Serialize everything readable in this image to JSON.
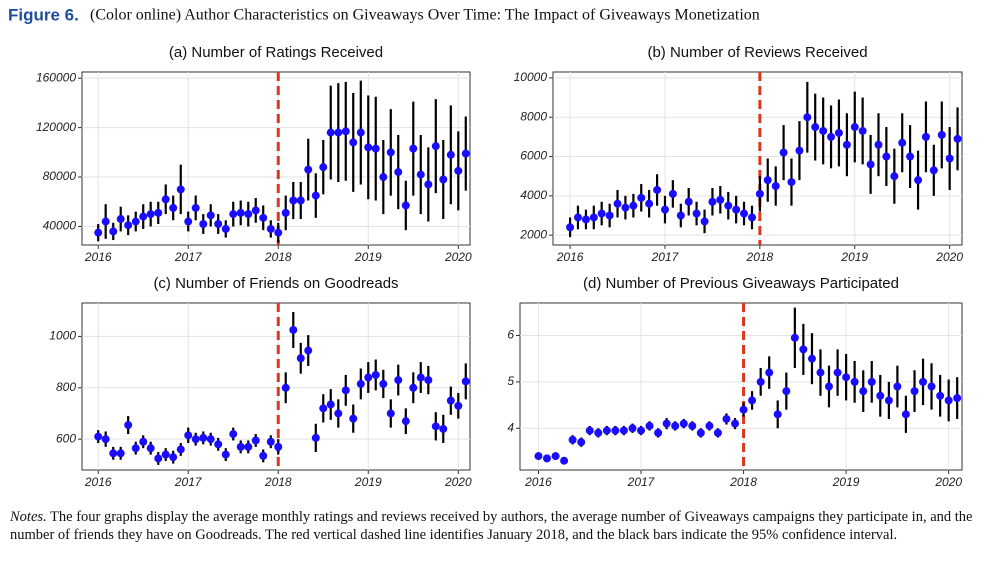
{
  "figure_label": "Figure 6.",
  "figure_title": "(Color online) Author Characteristics on Giveaways Over Time: The Impact of Giveaways Monetization",
  "notes_label": "Notes.",
  "notes_text": "The four graphs display the average monthly ratings and reviews received by authors, the average number of Giveaways campaigns they participate in, and the number of friends they have on Goodreads. The red vertical dashed line identifies January 2018, and the black bars indicate the 95% confidence interval.",
  "chart_data": [
    {
      "type": "errorpoint",
      "title": "(a) Number of Ratings Received",
      "color": "#1a0dff",
      "error_color": "#000000",
      "vline": {
        "x": 2018,
        "color": "#d9381e"
      },
      "grid": true,
      "x": [
        2016,
        2016.083,
        2016.167,
        2016.25,
        2016.333,
        2016.417,
        2016.5,
        2016.583,
        2016.667,
        2016.75,
        2016.833,
        2016.917,
        2017,
        2017.083,
        2017.167,
        2017.25,
        2017.333,
        2017.417,
        2017.5,
        2017.583,
        2017.667,
        2017.75,
        2017.833,
        2017.917,
        2018,
        2018.083,
        2018.167,
        2018.25,
        2018.333,
        2018.417,
        2018.5,
        2018.583,
        2018.667,
        2018.75,
        2018.833,
        2018.917,
        2019,
        2019.083,
        2019.167,
        2019.25,
        2019.333,
        2019.417,
        2019.5,
        2019.583,
        2019.667,
        2019.75,
        2019.833,
        2019.917,
        2020,
        2020.083
      ],
      "values": [
        35000,
        44000,
        36000,
        46000,
        41000,
        44000,
        48000,
        50000,
        51000,
        62000,
        55000,
        70000,
        44000,
        55000,
        42000,
        49000,
        42000,
        38000,
        50000,
        51000,
        50000,
        53000,
        47000,
        38000,
        35000,
        51000,
        61000,
        61000,
        86000,
        65000,
        88000,
        116000,
        116000,
        117000,
        108000,
        116000,
        104000,
        103000,
        80000,
        100000,
        84000,
        57000,
        103000,
        82000,
        74000,
        105000,
        78000,
        98000,
        85000,
        99000
      ],
      "errors": [
        7000,
        14000,
        7000,
        10000,
        8000,
        8000,
        10000,
        10000,
        9000,
        12000,
        10000,
        20000,
        8000,
        10000,
        8000,
        9000,
        8000,
        7000,
        10000,
        10000,
        10000,
        10000,
        10000,
        7000,
        8000,
        14000,
        15000,
        15000,
        25000,
        18000,
        22000,
        38000,
        40000,
        40000,
        40000,
        42000,
        42000,
        42000,
        30000,
        35000,
        30000,
        20000,
        38000,
        32000,
        30000,
        38000,
        32000,
        40000,
        32000,
        30000
      ],
      "xlim": [
        2015.82,
        2020.13
      ],
      "xticks": [
        2016,
        2017,
        2018,
        2019,
        2020
      ],
      "ylim": [
        25000,
        165000
      ],
      "yticks": [
        40000,
        80000,
        120000,
        160000
      ]
    },
    {
      "type": "errorpoint",
      "title": "(b) Number of Reviews Received",
      "color": "#1a0dff",
      "error_color": "#000000",
      "vline": {
        "x": 2018,
        "color": "#d9381e"
      },
      "grid": true,
      "x": [
        2016,
        2016.083,
        2016.167,
        2016.25,
        2016.333,
        2016.417,
        2016.5,
        2016.583,
        2016.667,
        2016.75,
        2016.833,
        2016.917,
        2017,
        2017.083,
        2017.167,
        2017.25,
        2017.333,
        2017.417,
        2017.5,
        2017.583,
        2017.667,
        2017.75,
        2017.833,
        2017.917,
        2018,
        2018.083,
        2018.167,
        2018.25,
        2018.333,
        2018.417,
        2018.5,
        2018.583,
        2018.667,
        2018.75,
        2018.833,
        2018.917,
        2019,
        2019.083,
        2019.167,
        2019.25,
        2019.333,
        2019.417,
        2019.5,
        2019.583,
        2019.667,
        2019.75,
        2019.833,
        2019.917,
        2020,
        2020.083
      ],
      "values": [
        2400,
        2900,
        2800,
        2900,
        3100,
        3000,
        3600,
        3400,
        3500,
        3900,
        3600,
        4300,
        3300,
        4100,
        3000,
        3700,
        3100,
        2700,
        3700,
        3800,
        3500,
        3300,
        3100,
        2900,
        4100,
        4800,
        4500,
        6200,
        4700,
        6300,
        8000,
        7500,
        7300,
        7000,
        7200,
        6600,
        7500,
        7300,
        5600,
        6600,
        6000,
        5000,
        6700,
        6000,
        4800,
        7000,
        5300,
        7100,
        5900,
        6900
      ],
      "errors": [
        500,
        600,
        500,
        600,
        600,
        600,
        700,
        600,
        600,
        700,
        700,
        800,
        700,
        700,
        600,
        700,
        600,
        600,
        700,
        700,
        700,
        700,
        600,
        600,
        900,
        1100,
        1000,
        1400,
        1200,
        1500,
        1800,
        1700,
        1700,
        1600,
        1700,
        1600,
        1800,
        1700,
        1500,
        1600,
        1500,
        1400,
        1500,
        1600,
        1500,
        1800,
        1300,
        1700,
        1600,
        1600
      ],
      "xlim": [
        2015.82,
        2020.13
      ],
      "xticks": [
        2016,
        2017,
        2018,
        2019,
        2020
      ],
      "ylim": [
        1500,
        10300
      ],
      "yticks": [
        2000,
        4000,
        6000,
        8000,
        10000
      ]
    },
    {
      "type": "errorpoint",
      "title": "(c) Number of Friends on Goodreads",
      "color": "#1a0dff",
      "error_color": "#000000",
      "vline": {
        "x": 2018,
        "color": "#d9381e"
      },
      "grid": true,
      "x": [
        2016,
        2016.083,
        2016.167,
        2016.25,
        2016.333,
        2016.417,
        2016.5,
        2016.583,
        2016.667,
        2016.75,
        2016.833,
        2016.917,
        2017,
        2017.083,
        2017.167,
        2017.25,
        2017.333,
        2017.417,
        2017.5,
        2017.583,
        2017.667,
        2017.75,
        2017.833,
        2017.917,
        2018,
        2018.083,
        2018.167,
        2018.25,
        2018.333,
        2018.417,
        2018.5,
        2018.583,
        2018.667,
        2018.75,
        2018.833,
        2018.917,
        2019,
        2019.083,
        2019.167,
        2019.25,
        2019.333,
        2019.417,
        2019.5,
        2019.583,
        2019.667,
        2019.75,
        2019.833,
        2019.917,
        2020,
        2020.083
      ],
      "values": [
        610,
        600,
        545,
        545,
        655,
        565,
        590,
        565,
        525,
        540,
        530,
        560,
        615,
        600,
        605,
        600,
        580,
        540,
        620,
        570,
        570,
        595,
        535,
        590,
        570,
        800,
        1025,
        915,
        945,
        605,
        720,
        735,
        700,
        790,
        680,
        815,
        840,
        850,
        815,
        700,
        830,
        670,
        800,
        840,
        830,
        650,
        640,
        750,
        730,
        825
      ],
      "errors": [
        25,
        30,
        25,
        25,
        35,
        25,
        25,
        25,
        25,
        25,
        25,
        25,
        30,
        25,
        25,
        25,
        25,
        25,
        25,
        25,
        25,
        25,
        25,
        25,
        30,
        60,
        70,
        60,
        60,
        55,
        55,
        60,
        55,
        60,
        55,
        60,
        60,
        60,
        55,
        55,
        60,
        50,
        60,
        60,
        55,
        55,
        55,
        55,
        50,
        70
      ],
      "xlim": [
        2015.82,
        2020.13
      ],
      "xticks": [
        2016,
        2017,
        2018,
        2019,
        2020
      ],
      "ylim": [
        480,
        1130
      ],
      "yticks": [
        600,
        800,
        1000
      ]
    },
    {
      "type": "errorpoint",
      "title": "(d) Number of Previous Giveaways Participated",
      "color": "#1a0dff",
      "error_color": "#000000",
      "vline": {
        "x": 2018,
        "color": "#d9381e"
      },
      "grid": true,
      "x": [
        2016,
        2016.083,
        2016.167,
        2016.25,
        2016.333,
        2016.417,
        2016.5,
        2016.583,
        2016.667,
        2016.75,
        2016.833,
        2016.917,
        2017,
        2017.083,
        2017.167,
        2017.25,
        2017.333,
        2017.417,
        2017.5,
        2017.583,
        2017.667,
        2017.75,
        2017.833,
        2017.917,
        2018,
        2018.083,
        2018.167,
        2018.25,
        2018.333,
        2018.417,
        2018.5,
        2018.583,
        2018.667,
        2018.75,
        2018.833,
        2018.917,
        2019,
        2019.083,
        2019.167,
        2019.25,
        2019.333,
        2019.417,
        2019.5,
        2019.583,
        2019.667,
        2019.75,
        2019.833,
        2019.917,
        2020,
        2020.083
      ],
      "values": [
        3.4,
        3.35,
        3.4,
        3.3,
        3.75,
        3.7,
        3.95,
        3.9,
        3.95,
        3.95,
        3.95,
        4.0,
        3.95,
        4.05,
        3.9,
        4.1,
        4.05,
        4.1,
        4.05,
        3.9,
        4.05,
        3.9,
        4.2,
        4.1,
        4.4,
        4.6,
        5.0,
        5.2,
        4.3,
        4.8,
        5.95,
        5.7,
        5.5,
        5.2,
        4.9,
        5.2,
        5.1,
        5.0,
        4.8,
        5.0,
        4.7,
        4.6,
        4.9,
        4.3,
        4.8,
        5.0,
        4.9,
        4.7,
        4.6,
        4.65
      ],
      "errors": [
        0.08,
        0.08,
        0.08,
        0.08,
        0.1,
        0.1,
        0.1,
        0.1,
        0.1,
        0.1,
        0.1,
        0.1,
        0.1,
        0.1,
        0.1,
        0.12,
        0.1,
        0.1,
        0.1,
        0.1,
        0.1,
        0.1,
        0.12,
        0.12,
        0.15,
        0.2,
        0.3,
        0.35,
        0.3,
        0.4,
        0.65,
        0.55,
        0.55,
        0.5,
        0.45,
        0.5,
        0.5,
        0.45,
        0.45,
        0.45,
        0.45,
        0.4,
        0.45,
        0.4,
        0.45,
        0.5,
        0.5,
        0.45,
        0.45,
        0.45
      ],
      "xlim": [
        2015.82,
        2020.13
      ],
      "xticks": [
        2016,
        2017,
        2018,
        2019,
        2020
      ],
      "ylim": [
        3.1,
        6.7
      ],
      "yticks": [
        4,
        5,
        6
      ]
    }
  ]
}
